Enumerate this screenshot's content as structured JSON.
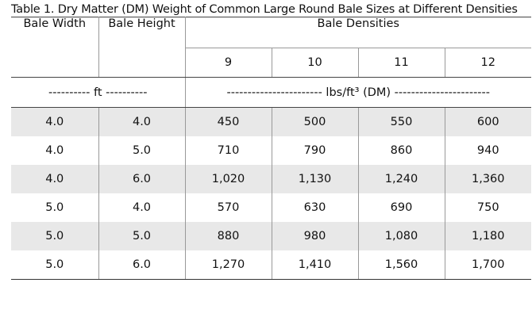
{
  "caption": "Table 1. Dry Matter (DM) Weight of Common Large Round Bale Sizes at Different Densities",
  "header": {
    "bale_width": "Bale Width",
    "bale_height": "Bale Height",
    "bale_densities": "Bale Densities",
    "densities": [
      "9",
      "10",
      "11",
      "12"
    ]
  },
  "units": {
    "dimensions": "---------- ft ----------",
    "weight": "----------------------- lbs/ft³ (DM) -----------------------"
  },
  "rows": [
    {
      "width": "4.0",
      "height": "4.0",
      "values": [
        "450",
        "500",
        "550",
        "600"
      ]
    },
    {
      "width": "4.0",
      "height": "5.0",
      "values": [
        "710",
        "790",
        "860",
        "940"
      ]
    },
    {
      "width": "4.0",
      "height": "6.0",
      "values": [
        "1,020",
        "1,130",
        "1,240",
        "1,360"
      ]
    },
    {
      "width": "5.0",
      "height": "4.0",
      "values": [
        "570",
        "630",
        "690",
        "750"
      ]
    },
    {
      "width": "5.0",
      "height": "5.0",
      "values": [
        "880",
        "980",
        "1,080",
        "1,180"
      ]
    },
    {
      "width": "5.0",
      "height": "6.0",
      "values": [
        "1,270",
        "1,410",
        "1,560",
        "1,700"
      ]
    }
  ]
}
